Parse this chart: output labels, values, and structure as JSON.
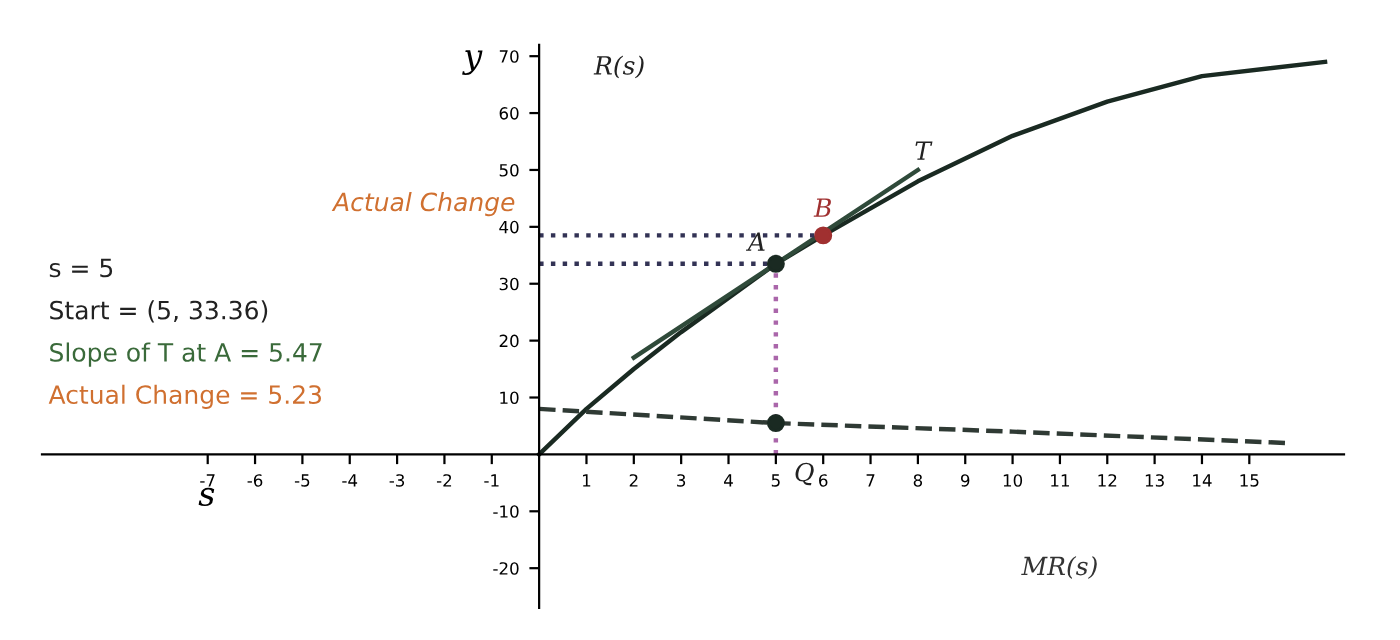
{
  "chart_data": {
    "type": "line",
    "xlabel": "s",
    "ylabel": "y",
    "xlim": [
      -10.5,
      17
    ],
    "ylim": [
      -27,
      72
    ],
    "xticks": [
      -7,
      -6,
      -5,
      -4,
      -3,
      -2,
      -1,
      1,
      2,
      3,
      4,
      5,
      6,
      7,
      8,
      9,
      10,
      11,
      12,
      13,
      14,
      15
    ],
    "yticks": [
      -20,
      -10,
      10,
      20,
      30,
      40,
      50,
      60,
      70
    ],
    "grid": false,
    "legend": false,
    "series": [
      {
        "color": "#1a2a22",
        "line_style": "solid",
        "marker": "none",
        "x": [
          0,
          1,
          2,
          3,
          4,
          5,
          6,
          8,
          10,
          12,
          14,
          16.6
        ],
        "values": [
          0,
          8,
          15,
          21.5,
          27.5,
          33.5,
          38.5,
          48,
          56,
          62,
          66.5,
          69
        ]
      },
      {
        "color": "#2f4a3a",
        "line_style": "solid",
        "marker": "none",
        "x": [
          2,
          8
        ],
        "values": [
          17,
          50
        ]
      },
      {
        "color": "#2f3a34",
        "line_style": "dashed",
        "marker": "none",
        "x": [
          0,
          5,
          10,
          15.8
        ],
        "values": [
          8,
          5.5,
          4,
          2
        ]
      },
      {
        "color": "#333355",
        "line_style": "dotted",
        "marker": "none",
        "x": [
          0,
          5
        ],
        "values": [
          33.5,
          33.5
        ]
      },
      {
        "color": "#333355",
        "line_style": "dotted",
        "marker": "none",
        "x": [
          0,
          6
        ],
        "values": [
          38.5,
          38.5
        ]
      },
      {
        "color": "#aa66aa",
        "line_style": "dotted",
        "marker": "none",
        "x": [
          5,
          5
        ],
        "values": [
          0,
          33.5
        ]
      },
      {
        "type": "scatter",
        "color": "#1a2a22",
        "marker": "circle",
        "x": [
          5,
          5
        ],
        "values": [
          33.5,
          5.5
        ]
      },
      {
        "type": "scatter",
        "color": "#a03030",
        "marker": "circle",
        "x": [
          6
        ],
        "values": [
          38.5
        ]
      }
    ],
    "annotations": [
      "R(s)",
      "T",
      "A",
      "B",
      "Q",
      "MR(s)",
      "Actual Change",
      "s = 5",
      "Start = (5, 33.36)",
      "Slope of T at A = 5.47",
      "Actual Change = 5.23"
    ]
  }
}
